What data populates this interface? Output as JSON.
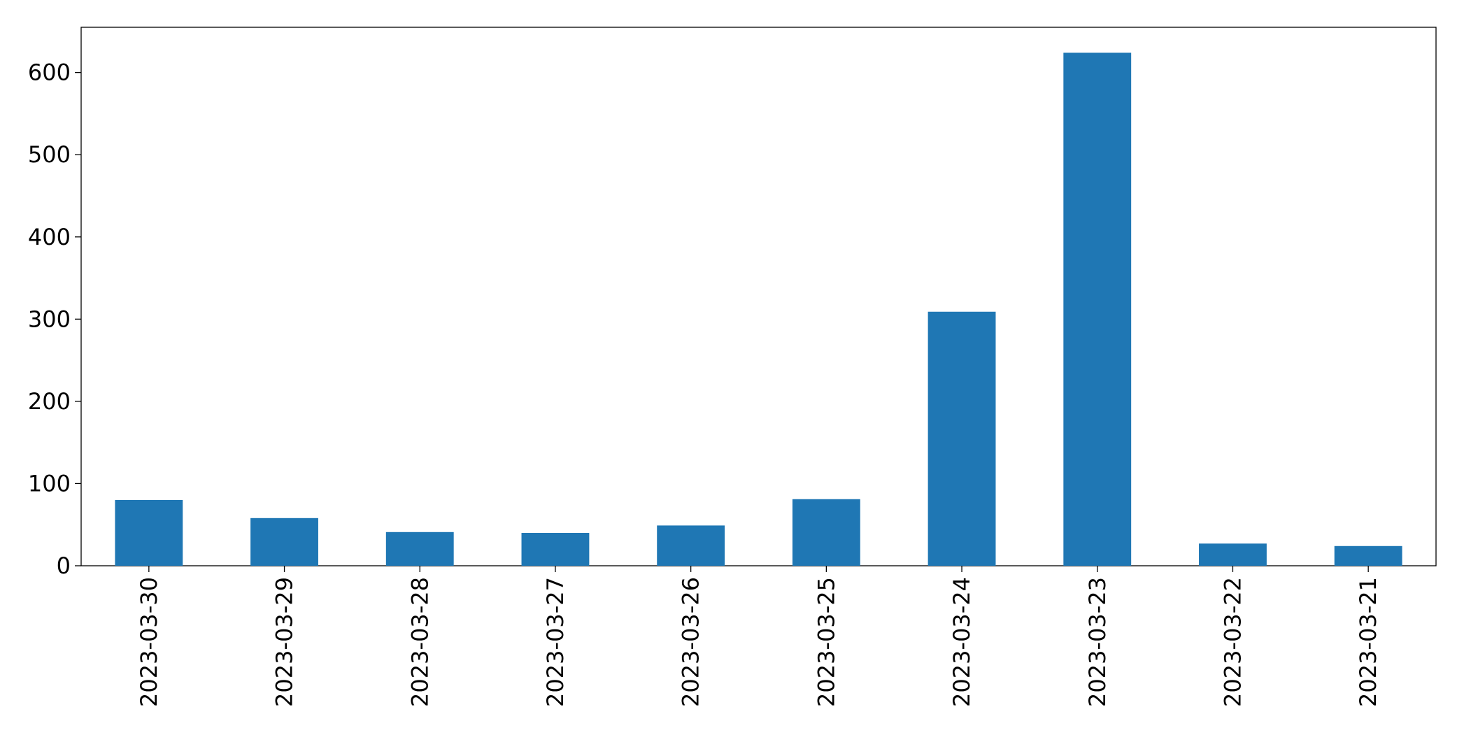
{
  "chart_data": {
    "type": "bar",
    "categories": [
      "2023-03-30",
      "2023-03-29",
      "2023-03-28",
      "2023-03-27",
      "2023-03-26",
      "2023-03-25",
      "2023-03-24",
      "2023-03-23",
      "2023-03-22",
      "2023-03-21"
    ],
    "values": [
      80,
      58,
      41,
      40,
      49,
      81,
      309,
      624,
      27,
      24
    ],
    "color": "#1f77b4",
    "ylim": [
      0,
      655
    ],
    "yticks": [
      0,
      100,
      200,
      300,
      400,
      500,
      600
    ],
    "grid": false
  }
}
